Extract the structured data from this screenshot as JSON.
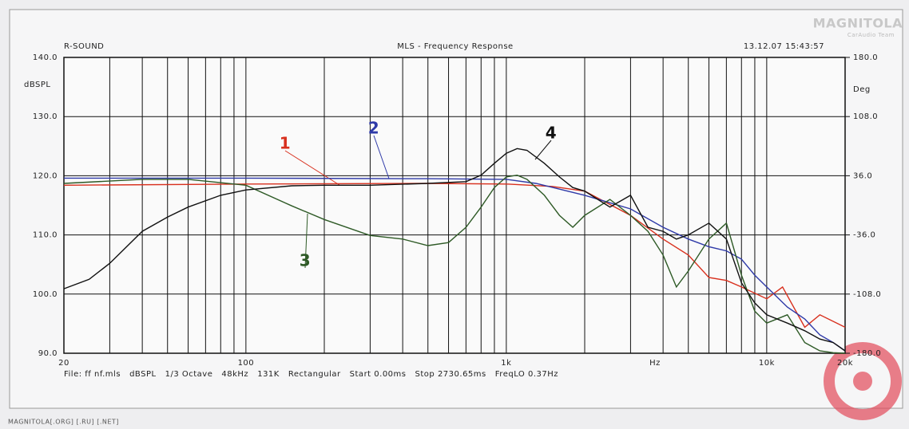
{
  "chart_data": {
    "type": "line",
    "header_left": "R-SOUND",
    "title": "MLS - Frequency Response",
    "timestamp": "13.12.07 15:43:57",
    "y_label": "dBSPL",
    "y2_label": "Deg",
    "x_unit": "Hz",
    "footer": "File: ff nf.mls   dBSPL   1/3 Octave   48kHz   131K   Rectangular   Start 0.00ms   Stop 2730.65ms   FreqLO 0.37Hz",
    "watermark": "MAGNITOLA[.ORG] [.RU] [.NET]",
    "logo": "MAGNITOLA",
    "logo_subtitle": "CarAudio Team",
    "log_x": true,
    "grid": true,
    "xlim": [
      20,
      20000
    ],
    "xticks": [
      20,
      100,
      {
        "value": 1000,
        "label": "1k"
      },
      {
        "value": 10000,
        "label": "10k"
      },
      {
        "value": 20000,
        "label": "20k"
      }
    ],
    "xgrid": [
      20,
      30,
      40,
      50,
      60,
      70,
      80,
      90,
      100,
      200,
      300,
      400,
      500,
      600,
      700,
      800,
      900,
      1000,
      2000,
      3000,
      4000,
      5000,
      6000,
      7000,
      8000,
      9000,
      10000,
      20000
    ],
    "ylim": [
      90,
      140
    ],
    "yticks": [
      {
        "value": 90,
        "label": "90.0"
      },
      {
        "value": 100,
        "label": "100.0"
      },
      {
        "value": 110,
        "label": "110.0"
      },
      {
        "value": 120,
        "label": "120.0"
      },
      {
        "value": 130,
        "label": "130.0"
      },
      {
        "value": 140,
        "label": "140.0"
      }
    ],
    "y2lim": [
      -180,
      180
    ],
    "y2ticks": [
      {
        "value": -180,
        "label": "-180.0"
      },
      {
        "value": -108,
        "label": "-108.0"
      },
      {
        "value": -36,
        "label": "-36.0"
      },
      {
        "value": 36,
        "label": "36.0"
      },
      {
        "value": 108,
        "label": "108.0"
      },
      {
        "value": 180,
        "label": "180.0"
      }
    ],
    "series": [
      {
        "name": "1",
        "color": "#d8301e",
        "x": [
          20,
          100,
          500,
          1000,
          1500,
          2000,
          3000,
          4000,
          5000,
          6000,
          7000,
          8000,
          10000,
          11500,
          14000,
          16000,
          20000
        ],
        "values": [
          118.4,
          118.6,
          118.7,
          118.6,
          118.2,
          117.4,
          113.3,
          109.3,
          106.6,
          102.8,
          102.3,
          101.2,
          99.2,
          101.2,
          94.4,
          96.5,
          94.4
        ]
      },
      {
        "name": "2",
        "color": "#2f3aa8",
        "x": [
          20,
          100,
          500,
          1000,
          1300,
          2000,
          3000,
          4000,
          5000,
          6000,
          7000,
          8000,
          9000,
          10000,
          12000,
          14000,
          16000,
          18000,
          20000
        ],
        "values": [
          119.6,
          119.6,
          119.5,
          119.4,
          118.7,
          116.7,
          114.4,
          111.3,
          109.3,
          108,
          107.3,
          105.9,
          103.2,
          101.2,
          97.8,
          95.8,
          93.1,
          91.8,
          90.4
        ]
      },
      {
        "name": "3",
        "color": "#2e5a26",
        "x": [
          20,
          40,
          60,
          100,
          150,
          200,
          300,
          400,
          500,
          600,
          700,
          800,
          900,
          1000,
          1100,
          1200,
          1400,
          1600,
          1800,
          2000,
          2500,
          3000,
          3500,
          4000,
          4500,
          5000,
          6000,
          7000,
          8000,
          9000,
          10000,
          12000,
          14000,
          16000,
          18000,
          20000
        ],
        "values": [
          118.7,
          119.4,
          119.4,
          118.4,
          114.9,
          112.6,
          109.9,
          109.3,
          108.2,
          108.7,
          111.3,
          114.7,
          118,
          119.8,
          120.1,
          119.4,
          116.7,
          113.3,
          111.3,
          113.3,
          116,
          113.3,
          110.6,
          106.6,
          101.2,
          103.9,
          109.3,
          112,
          103.2,
          97.1,
          95.1,
          96.5,
          91.8,
          90.4,
          90.1,
          90
        ]
      },
      {
        "name": "4",
        "color": "#111111",
        "x": [
          20,
          25,
          30,
          40,
          50,
          60,
          80,
          100,
          150,
          200,
          300,
          500,
          700,
          800,
          900,
          1000,
          1100,
          1200,
          1400,
          1600,
          1800,
          2000,
          2500,
          3000,
          3500,
          4000,
          4500,
          5000,
          6000,
          7000,
          8000,
          9000,
          10000,
          12000,
          14000,
          16000,
          18000,
          20000
        ],
        "values": [
          100.9,
          102.5,
          105.2,
          110.6,
          113,
          114.7,
          116.7,
          117.6,
          118.3,
          118.4,
          118.4,
          118.7,
          119,
          120.1,
          122.1,
          123.8,
          124.6,
          124.3,
          122.1,
          119.8,
          118,
          117.4,
          114.7,
          116.7,
          111.3,
          110.6,
          109.3,
          110,
          112,
          109.3,
          101.9,
          98.5,
          96.5,
          95.1,
          93.8,
          92.4,
          91.8,
          90.4
        ]
      }
    ]
  }
}
